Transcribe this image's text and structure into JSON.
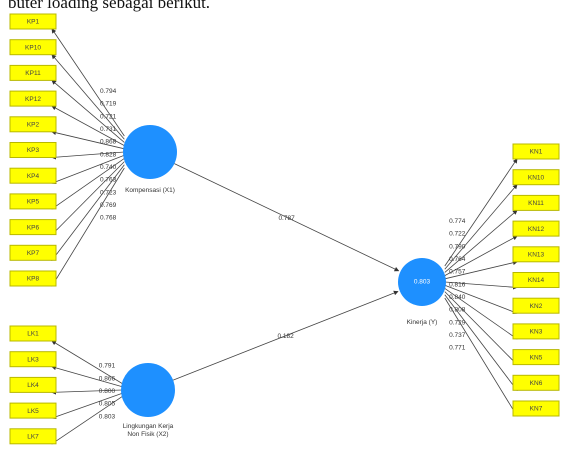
{
  "document_text": "buter loading sebagai berikut.",
  "constructs": [
    {
      "id": "X1",
      "label": "Kompensasi (X1)",
      "inner_text": "",
      "color": "#1e90ff"
    },
    {
      "id": "X2",
      "label": "Lingkungan Kerja Non Fisik (X2)",
      "label_lines": [
        "Lingkungan Kerja",
        "Non Fisik (X2)"
      ],
      "inner_text": "",
      "color": "#1e90ff"
    },
    {
      "id": "Y",
      "label": "Kinerja (Y)",
      "inner_text": "0.803",
      "color": "#1e90ff"
    }
  ],
  "indicators": {
    "X1": [
      "KP1",
      "KP10",
      "KP11",
      "KP12",
      "KP2",
      "KP3",
      "KP4",
      "KP5",
      "KP6",
      "KP7",
      "KP8"
    ],
    "X2": [
      "LK1",
      "LK3",
      "LK4",
      "LK5",
      "LK7"
    ],
    "Y": [
      "KN1",
      "KN10",
      "KN11",
      "KN12",
      "KN13",
      "KN14",
      "KN2",
      "KN3",
      "KN5",
      "KN6",
      "KN7"
    ]
  },
  "loadings": {
    "X1": [
      "0.794",
      "0.719",
      "0.721",
      "0.731",
      "0.868",
      "0.828",
      "0.740",
      "0.763",
      "0.723",
      "0.769",
      "0.768"
    ],
    "X2": [
      "0.791",
      "0.866",
      "0.800",
      "0.805",
      "0.803"
    ],
    "Y": [
      "0.774",
      "0.722",
      "0.790",
      "0.764",
      "0.757",
      "0.816",
      "0.840",
      "0.808",
      "0.729",
      "0.737",
      "0.771"
    ]
  },
  "paths": [
    {
      "from": "X1",
      "to": "Y",
      "coefficient": "0.787"
    },
    {
      "from": "X2",
      "to": "Y",
      "coefficient": "0.182"
    }
  ],
  "colors": {
    "indicator_fill": "#ffff00",
    "construct_fill": "#1e90ff",
    "line": "#444444"
  }
}
